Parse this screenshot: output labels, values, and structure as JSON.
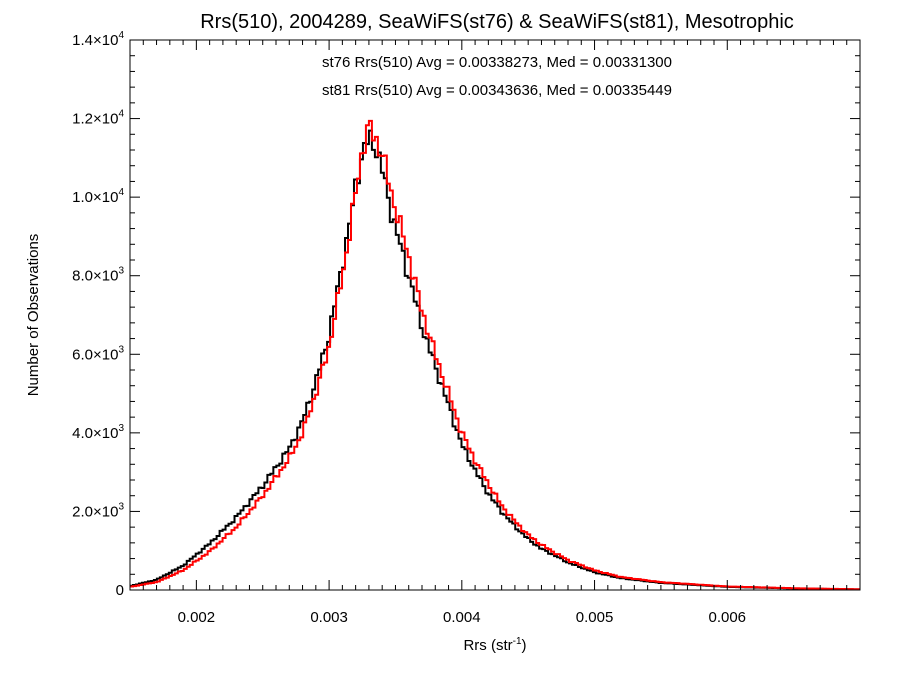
{
  "chart_data": {
    "type": "line",
    "title": "Rrs(510), 2004289, SeaWiFS(st76) & SeaWiFS(st81), Mesotrophic",
    "xlabel": "Rrs (str",
    "xlabel_sup": "-1",
    "xlabel_end": ")",
    "ylabel": "Number of Observations",
    "xlim": [
      0.0015,
      0.007
    ],
    "ylim": [
      0,
      14000
    ],
    "x_ticks": [
      {
        "value": 0.002,
        "label": "0.002"
      },
      {
        "value": 0.003,
        "label": "0.003"
      },
      {
        "value": 0.004,
        "label": "0.004"
      },
      {
        "value": 0.005,
        "label": "0.005"
      },
      {
        "value": 0.006,
        "label": "0.006"
      }
    ],
    "y_ticks": [
      {
        "value": 0,
        "mant": "0",
        "exp": ""
      },
      {
        "value": 2000,
        "mant": "2.0×10",
        "exp": "3"
      },
      {
        "value": 4000,
        "mant": "4.0×10",
        "exp": "3"
      },
      {
        "value": 6000,
        "mant": "6.0×10",
        "exp": "3"
      },
      {
        "value": 8000,
        "mant": "8.0×10",
        "exp": "3"
      },
      {
        "value": 10000,
        "mant": "1.0×10",
        "exp": "4"
      },
      {
        "value": 12000,
        "mant": "1.2×10",
        "exp": "4"
      },
      {
        "value": 14000,
        "mant": "1.4×10",
        "exp": "4"
      }
    ],
    "annotations": [
      {
        "text": "st76 Rrs(510) Avg = 0.00338273, Med = 0.00331300",
        "color": "#000000"
      },
      {
        "text": "st81 Rrs(510) Avg = 0.00343636, Med = 0.00335449",
        "color": "#ff0000"
      }
    ],
    "series": [
      {
        "color": "#000000",
        "points": [
          [
            0.0015,
            100
          ],
          [
            0.0017,
            260
          ],
          [
            0.0019,
            620
          ],
          [
            0.0021,
            1180
          ],
          [
            0.0023,
            1850
          ],
          [
            0.0025,
            2650
          ],
          [
            0.0027,
            3600
          ],
          [
            0.0028,
            4300
          ],
          [
            0.0029,
            5300
          ],
          [
            0.003,
            6500
          ],
          [
            0.0031,
            8300
          ],
          [
            0.00315,
            9200
          ],
          [
            0.0032,
            10300
          ],
          [
            0.00325,
            11100
          ],
          [
            0.0033,
            11500
          ],
          [
            0.00335,
            11300
          ],
          [
            0.0034,
            10700
          ],
          [
            0.00345,
            9900
          ],
          [
            0.0035,
            9200
          ],
          [
            0.0036,
            8000
          ],
          [
            0.0037,
            6700
          ],
          [
            0.0038,
            5700
          ],
          [
            0.0039,
            4700
          ],
          [
            0.004,
            3700
          ],
          [
            0.0041,
            3050
          ],
          [
            0.0042,
            2450
          ],
          [
            0.0043,
            2000
          ],
          [
            0.0044,
            1620
          ],
          [
            0.0045,
            1300
          ],
          [
            0.0046,
            1050
          ],
          [
            0.0047,
            880
          ],
          [
            0.0048,
            700
          ],
          [
            0.005,
            450
          ],
          [
            0.0052,
            300
          ],
          [
            0.0055,
            180
          ],
          [
            0.006,
            80
          ],
          [
            0.0065,
            40
          ],
          [
            0.007,
            15
          ]
        ]
      },
      {
        "color": "#ff0000",
        "points": [
          [
            0.0015,
            80
          ],
          [
            0.0017,
            200
          ],
          [
            0.0019,
            500
          ],
          [
            0.0021,
            980
          ],
          [
            0.0023,
            1600
          ],
          [
            0.0025,
            2400
          ],
          [
            0.0027,
            3350
          ],
          [
            0.0028,
            4000
          ],
          [
            0.0029,
            5000
          ],
          [
            0.003,
            6200
          ],
          [
            0.0031,
            8000
          ],
          [
            0.00315,
            9000
          ],
          [
            0.0032,
            10100
          ],
          [
            0.00325,
            11200
          ],
          [
            0.0033,
            11800
          ],
          [
            0.00335,
            11500
          ],
          [
            0.0034,
            11100
          ],
          [
            0.00345,
            10400
          ],
          [
            0.0035,
            9700
          ],
          [
            0.0036,
            8500
          ],
          [
            0.0037,
            7100
          ],
          [
            0.0038,
            6000
          ],
          [
            0.0039,
            5000
          ],
          [
            0.004,
            4000
          ],
          [
            0.0041,
            3300
          ],
          [
            0.0042,
            2700
          ],
          [
            0.0043,
            2150
          ],
          [
            0.0044,
            1750
          ],
          [
            0.0045,
            1400
          ],
          [
            0.0046,
            1150
          ],
          [
            0.0047,
            950
          ],
          [
            0.0048,
            760
          ],
          [
            0.005,
            500
          ],
          [
            0.0052,
            330
          ],
          [
            0.0055,
            200
          ],
          [
            0.006,
            90
          ],
          [
            0.0065,
            45
          ],
          [
            0.007,
            18
          ]
        ]
      }
    ]
  }
}
